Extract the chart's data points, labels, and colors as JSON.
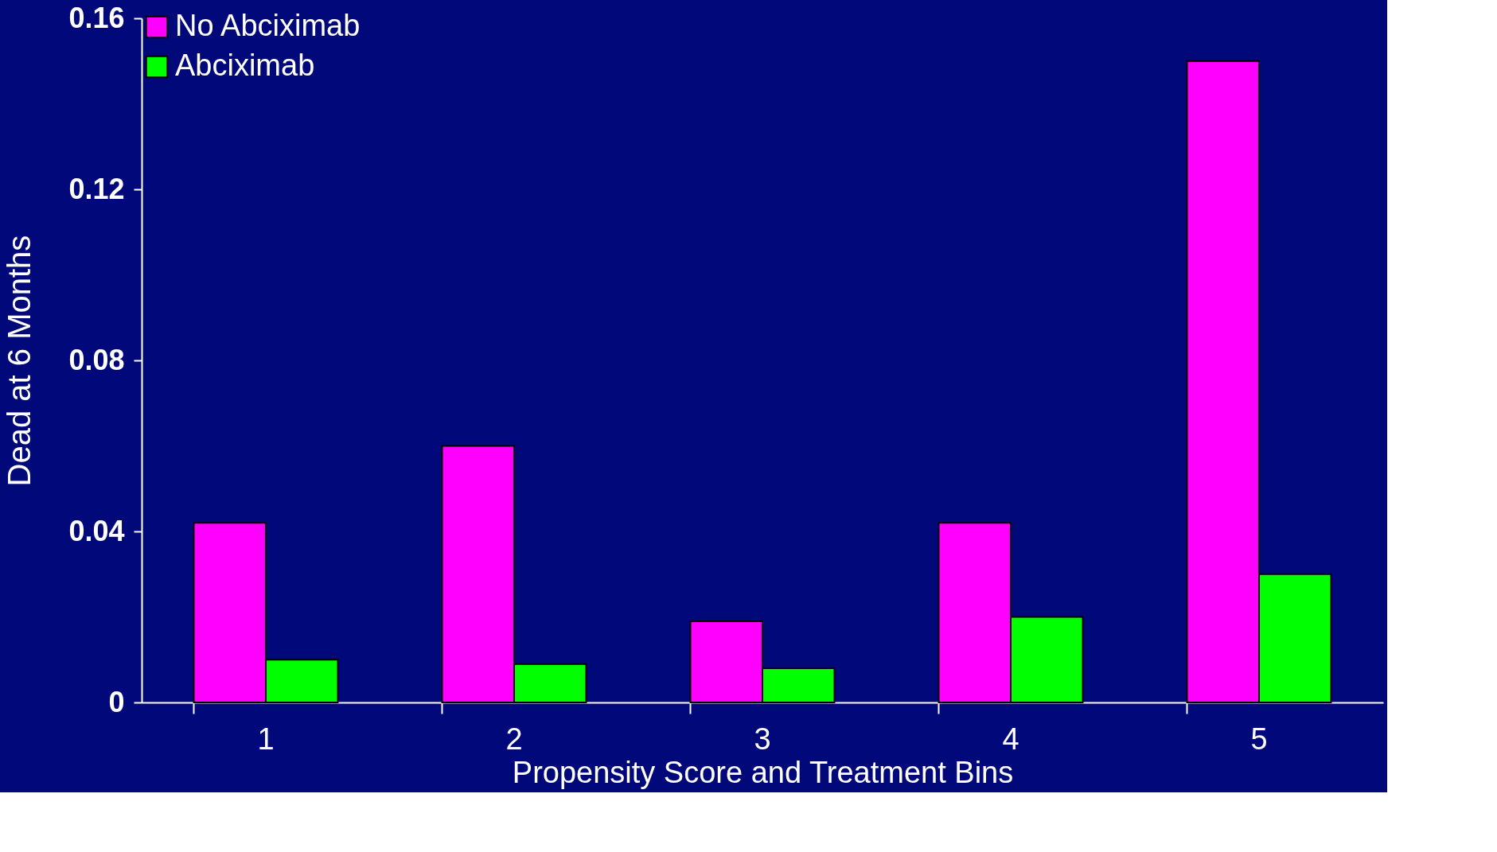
{
  "chart_data": {
    "type": "bar",
    "xlabel": "Propensity Score and Treatment Bins",
    "ylabel": "Dead at 6 Months",
    "categories": [
      "1",
      "2",
      "3",
      "4",
      "5"
    ],
    "series": [
      {
        "name": "No Abciximab",
        "color": "#ff00ff",
        "values": [
          0.042,
          0.06,
          0.019,
          0.042,
          0.15
        ]
      },
      {
        "name": "Abciximab",
        "color": "#00ff00",
        "values": [
          0.01,
          0.009,
          0.008,
          0.02,
          0.03
        ]
      }
    ],
    "ylim": [
      0,
      0.16
    ],
    "yticks": [
      {
        "value": 0,
        "label": "0"
      },
      0.04,
      0.08,
      0.12,
      0.16
    ],
    "grid": false,
    "legend": "top"
  }
}
